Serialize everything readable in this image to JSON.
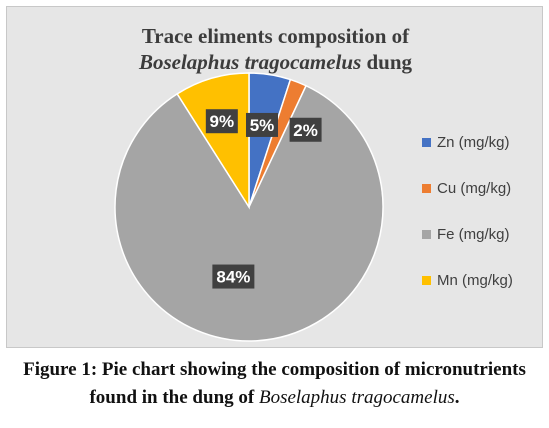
{
  "chart_data": {
    "type": "pie",
    "title_line1": "Trace eliments composition of",
    "title_line2_italic": "Boselaphus tragocamelus",
    "title_line2_rest": " dung",
    "categories": [
      "Zn (mg/kg)",
      "Cu (mg/kg)",
      "Fe (mg/kg)",
      "Mn (mg/kg)"
    ],
    "values": [
      5,
      2,
      84,
      9
    ],
    "data_labels": [
      "5%",
      "2%",
      "84%",
      "9%"
    ],
    "colors": [
      "#4472c4",
      "#ed7d31",
      "#a5a5a5",
      "#ffc000"
    ],
    "legend_position": "right"
  },
  "caption": {
    "line1": "Figure 1: Pie chart showing the composition of micronutrients",
    "line2_start": "found in the dung of ",
    "line2_italic": "Boselaphus tragocamelus",
    "line2_end": "."
  }
}
